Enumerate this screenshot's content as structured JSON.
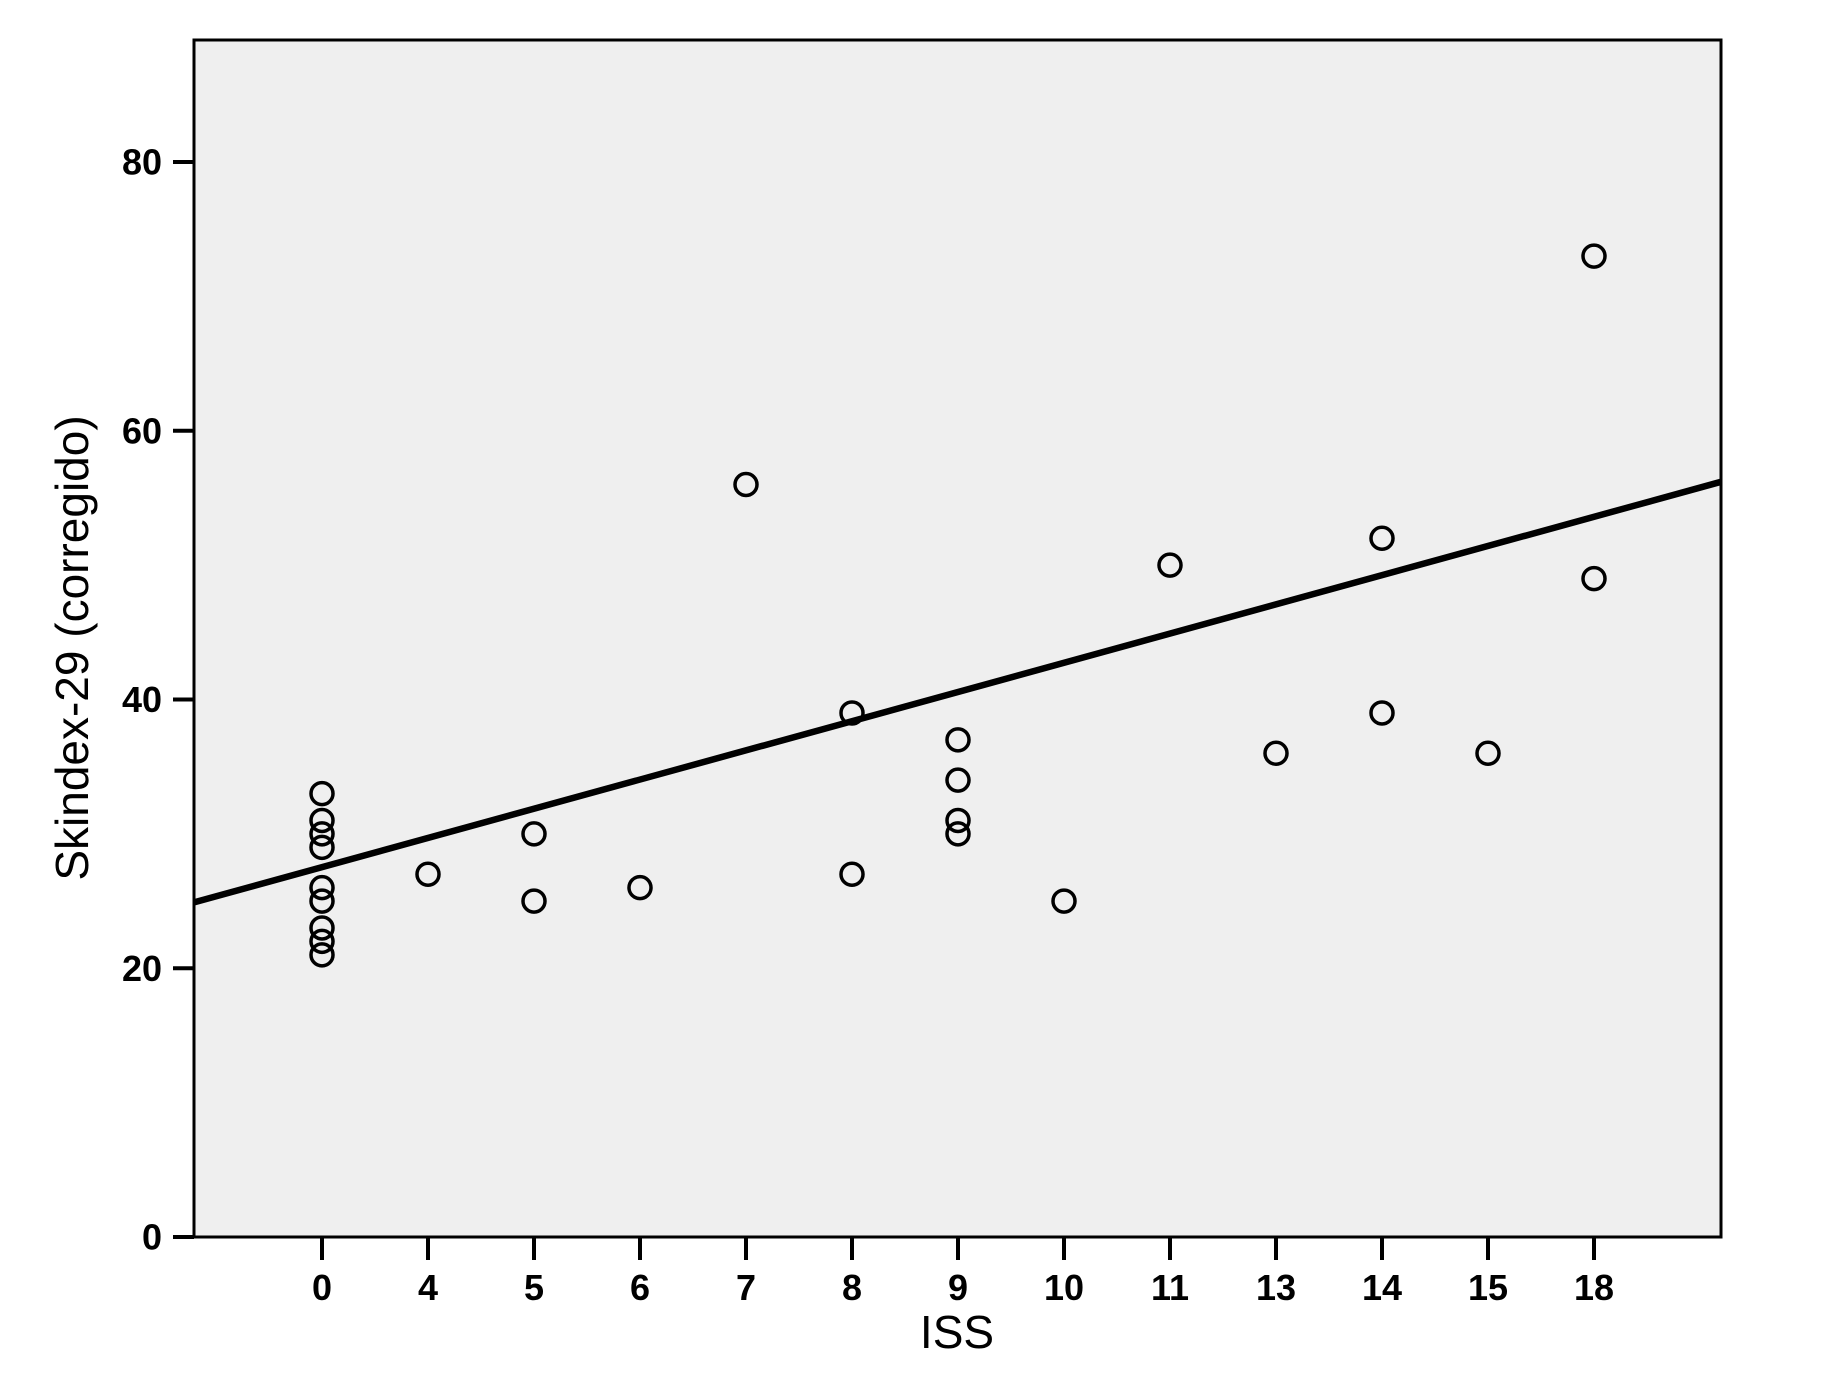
{
  "chart_data": {
    "type": "scatter",
    "title": "",
    "xlabel": "ISS",
    "ylabel": "Skindex-29 (corregido)",
    "categories": [
      "0",
      "4",
      "5",
      "6",
      "7",
      "8",
      "9",
      "10",
      "11",
      "13",
      "14",
      "15",
      "18"
    ],
    "y_ticks": [
      "0",
      "20",
      "40",
      "60",
      "80"
    ],
    "ylim": [
      0,
      89
    ],
    "grid": false,
    "legend": "none",
    "points": [
      {
        "x": "0",
        "y": 33
      },
      {
        "x": "0",
        "y": 31
      },
      {
        "x": "0",
        "y": 30
      },
      {
        "x": "0",
        "y": 29
      },
      {
        "x": "0",
        "y": 26
      },
      {
        "x": "0",
        "y": 25
      },
      {
        "x": "0",
        "y": 23
      },
      {
        "x": "0",
        "y": 22
      },
      {
        "x": "0",
        "y": 21
      },
      {
        "x": "4",
        "y": 27
      },
      {
        "x": "5",
        "y": 30
      },
      {
        "x": "5",
        "y": 25
      },
      {
        "x": "6",
        "y": 26
      },
      {
        "x": "7",
        "y": 56
      },
      {
        "x": "8",
        "y": 39
      },
      {
        "x": "8",
        "y": 27
      },
      {
        "x": "9",
        "y": 37
      },
      {
        "x": "9",
        "y": 34
      },
      {
        "x": "9",
        "y": 31
      },
      {
        "x": "9",
        "y": 30
      },
      {
        "x": "10",
        "y": 25
      },
      {
        "x": "11",
        "y": 50
      },
      {
        "x": "13",
        "y": 36
      },
      {
        "x": "14",
        "y": 52
      },
      {
        "x": "14",
        "y": 39
      },
      {
        "x": "15",
        "y": 36
      },
      {
        "x": "18",
        "y": 73
      },
      {
        "x": "18",
        "y": 49
      }
    ],
    "fit_line": {
      "y_at_left_edge": 24.9,
      "y_at_right_edge": 56.2
    },
    "colors": {
      "plot_background": "#efefef",
      "page_background": "#ffffff",
      "stroke": "#000000",
      "text": "#000000"
    }
  }
}
